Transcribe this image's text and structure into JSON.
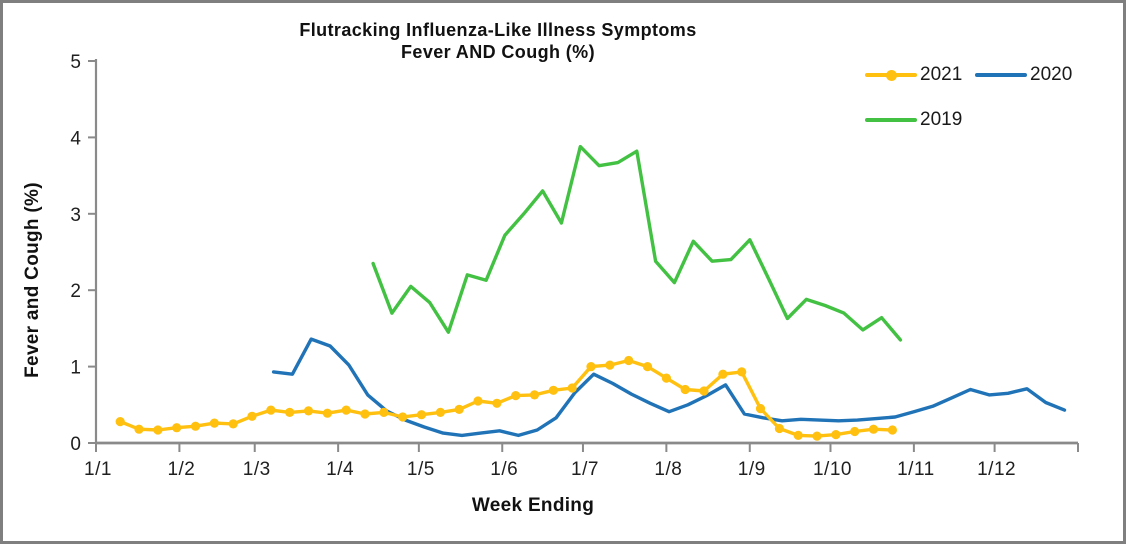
{
  "title": {
    "line1": "Flutracking Influenza-Like Illness Symptoms",
    "line2": "Fever AND Cough (%)"
  },
  "axes": {
    "x_label": "Week Ending",
    "y_label": "Fever and Cough (%)"
  },
  "legend": {
    "items": [
      {
        "label": "2021",
        "color": "#FFC010",
        "marker": "circle"
      },
      {
        "label": "2020",
        "color": "#2073B7",
        "marker": "line"
      },
      {
        "label": "2019",
        "color": "#42C142",
        "marker": "line"
      }
    ]
  },
  "colors": {
    "axis": "#8a8a8a",
    "tick_text": "#1f1f1f",
    "frame_border": "#7f7f7f",
    "series_2021": "#FFC010",
    "series_2020": "#2073B7",
    "series_2019": "#42C142"
  },
  "chart_data": {
    "type": "line",
    "title": "Flutracking Influenza-Like Illness Symptoms Fever AND Cough (%)",
    "xlabel": "Week Ending",
    "ylabel": "Fever and Cough (%)",
    "ylim": [
      0,
      5
    ],
    "grid": false,
    "legend_position": "top-right",
    "x_tick_format": "day/month",
    "x_ticks": [
      "1/1",
      "1/2",
      "1/3",
      "1/4",
      "1/5",
      "1/6",
      "1/7",
      "1/8",
      "1/9",
      "1/10",
      "1/11",
      "1/12"
    ],
    "y_ticks": [
      "0",
      "1",
      "2",
      "3",
      "4",
      "5"
    ],
    "series": [
      {
        "name": "2021",
        "color": "#FFC010",
        "marker": true,
        "points": [
          [
            "10/1",
            0.28
          ],
          [
            "17/1",
            0.18
          ],
          [
            "24/1",
            0.17
          ],
          [
            "31/1",
            0.2
          ],
          [
            "7/2",
            0.22
          ],
          [
            "14/2",
            0.26
          ],
          [
            "21/2",
            0.25
          ],
          [
            "28/2",
            0.35
          ],
          [
            "7/3",
            0.43
          ],
          [
            "14/3",
            0.4
          ],
          [
            "21/3",
            0.42
          ],
          [
            "28/3",
            0.39
          ],
          [
            "4/4",
            0.43
          ],
          [
            "11/4",
            0.38
          ],
          [
            "18/4",
            0.4
          ],
          [
            "25/4",
            0.34
          ],
          [
            "2/5",
            0.37
          ],
          [
            "9/5",
            0.4
          ],
          [
            "16/5",
            0.44
          ],
          [
            "23/5",
            0.55
          ],
          [
            "30/5",
            0.52
          ],
          [
            "6/6",
            0.62
          ],
          [
            "13/6",
            0.63
          ],
          [
            "20/6",
            0.69
          ],
          [
            "27/6",
            0.72
          ],
          [
            "4/7",
            1.0
          ],
          [
            "11/7",
            1.02
          ],
          [
            "18/7",
            1.08
          ],
          [
            "25/7",
            1.0
          ],
          [
            "1/8",
            0.85
          ],
          [
            "8/8",
            0.7
          ],
          [
            "15/8",
            0.68
          ],
          [
            "22/8",
            0.9
          ],
          [
            "29/8",
            0.93
          ],
          [
            "5/9",
            0.45
          ],
          [
            "12/9",
            0.19
          ],
          [
            "19/9",
            0.1
          ],
          [
            "26/9",
            0.09
          ],
          [
            "3/10",
            0.11
          ],
          [
            "10/10",
            0.15
          ],
          [
            "17/10",
            0.18
          ],
          [
            "24/10",
            0.17
          ]
        ]
      },
      {
        "name": "2020",
        "color": "#2073B7",
        "marker": false,
        "points": [
          [
            "8/3",
            0.93
          ],
          [
            "15/3",
            0.9
          ],
          [
            "22/3",
            1.36
          ],
          [
            "29/3",
            1.27
          ],
          [
            "5/4",
            1.02
          ],
          [
            "12/4",
            0.63
          ],
          [
            "19/4",
            0.42
          ],
          [
            "26/4",
            0.3
          ],
          [
            "3/5",
            0.21
          ],
          [
            "10/5",
            0.13
          ],
          [
            "17/5",
            0.1
          ],
          [
            "24/5",
            0.13
          ],
          [
            "31/5",
            0.16
          ],
          [
            "7/6",
            0.1
          ],
          [
            "14/6",
            0.17
          ],
          [
            "21/6",
            0.33
          ],
          [
            "28/6",
            0.66
          ],
          [
            "5/7",
            0.9
          ],
          [
            "12/7",
            0.78
          ],
          [
            "19/7",
            0.64
          ],
          [
            "26/7",
            0.52
          ],
          [
            "2/8",
            0.41
          ],
          [
            "9/8",
            0.5
          ],
          [
            "16/8",
            0.62
          ],
          [
            "23/8",
            0.76
          ],
          [
            "30/8",
            0.38
          ],
          [
            "6/9",
            0.33
          ],
          [
            "13/9",
            0.29
          ],
          [
            "20/9",
            0.31
          ],
          [
            "27/9",
            0.3
          ],
          [
            "4/10",
            0.29
          ],
          [
            "11/10",
            0.3
          ],
          [
            "18/10",
            0.32
          ],
          [
            "25/10",
            0.34
          ],
          [
            "1/11",
            0.41
          ],
          [
            "8/11",
            0.48
          ],
          [
            "15/11",
            0.59
          ],
          [
            "22/11",
            0.7
          ],
          [
            "29/11",
            0.63
          ],
          [
            "6/12",
            0.65
          ],
          [
            "13/12",
            0.71
          ],
          [
            "20/12",
            0.53
          ],
          [
            "27/12",
            0.43
          ]
        ]
      },
      {
        "name": "2019",
        "color": "#42C142",
        "marker": false,
        "points": [
          [
            "14/4",
            2.35
          ],
          [
            "21/4",
            1.7
          ],
          [
            "28/4",
            2.05
          ],
          [
            "5/5",
            1.84
          ],
          [
            "12/5",
            1.45
          ],
          [
            "19/5",
            2.2
          ],
          [
            "26/5",
            2.13
          ],
          [
            "2/6",
            2.72
          ],
          [
            "9/6",
            3.0
          ],
          [
            "16/6",
            3.3
          ],
          [
            "23/6",
            2.88
          ],
          [
            "30/6",
            3.88
          ],
          [
            "7/7",
            3.63
          ],
          [
            "14/7",
            3.67
          ],
          [
            "21/7",
            3.82
          ],
          [
            "28/7",
            2.38
          ],
          [
            "4/8",
            2.1
          ],
          [
            "11/8",
            2.64
          ],
          [
            "18/8",
            2.38
          ],
          [
            "25/8",
            2.4
          ],
          [
            "1/9",
            2.66
          ],
          [
            "8/9",
            2.15
          ],
          [
            "15/9",
            1.63
          ],
          [
            "22/9",
            1.88
          ],
          [
            "29/9",
            1.8
          ],
          [
            "6/10",
            1.7
          ],
          [
            "13/10",
            1.48
          ],
          [
            "20/10",
            1.64
          ],
          [
            "27/10",
            1.35
          ]
        ]
      }
    ]
  }
}
